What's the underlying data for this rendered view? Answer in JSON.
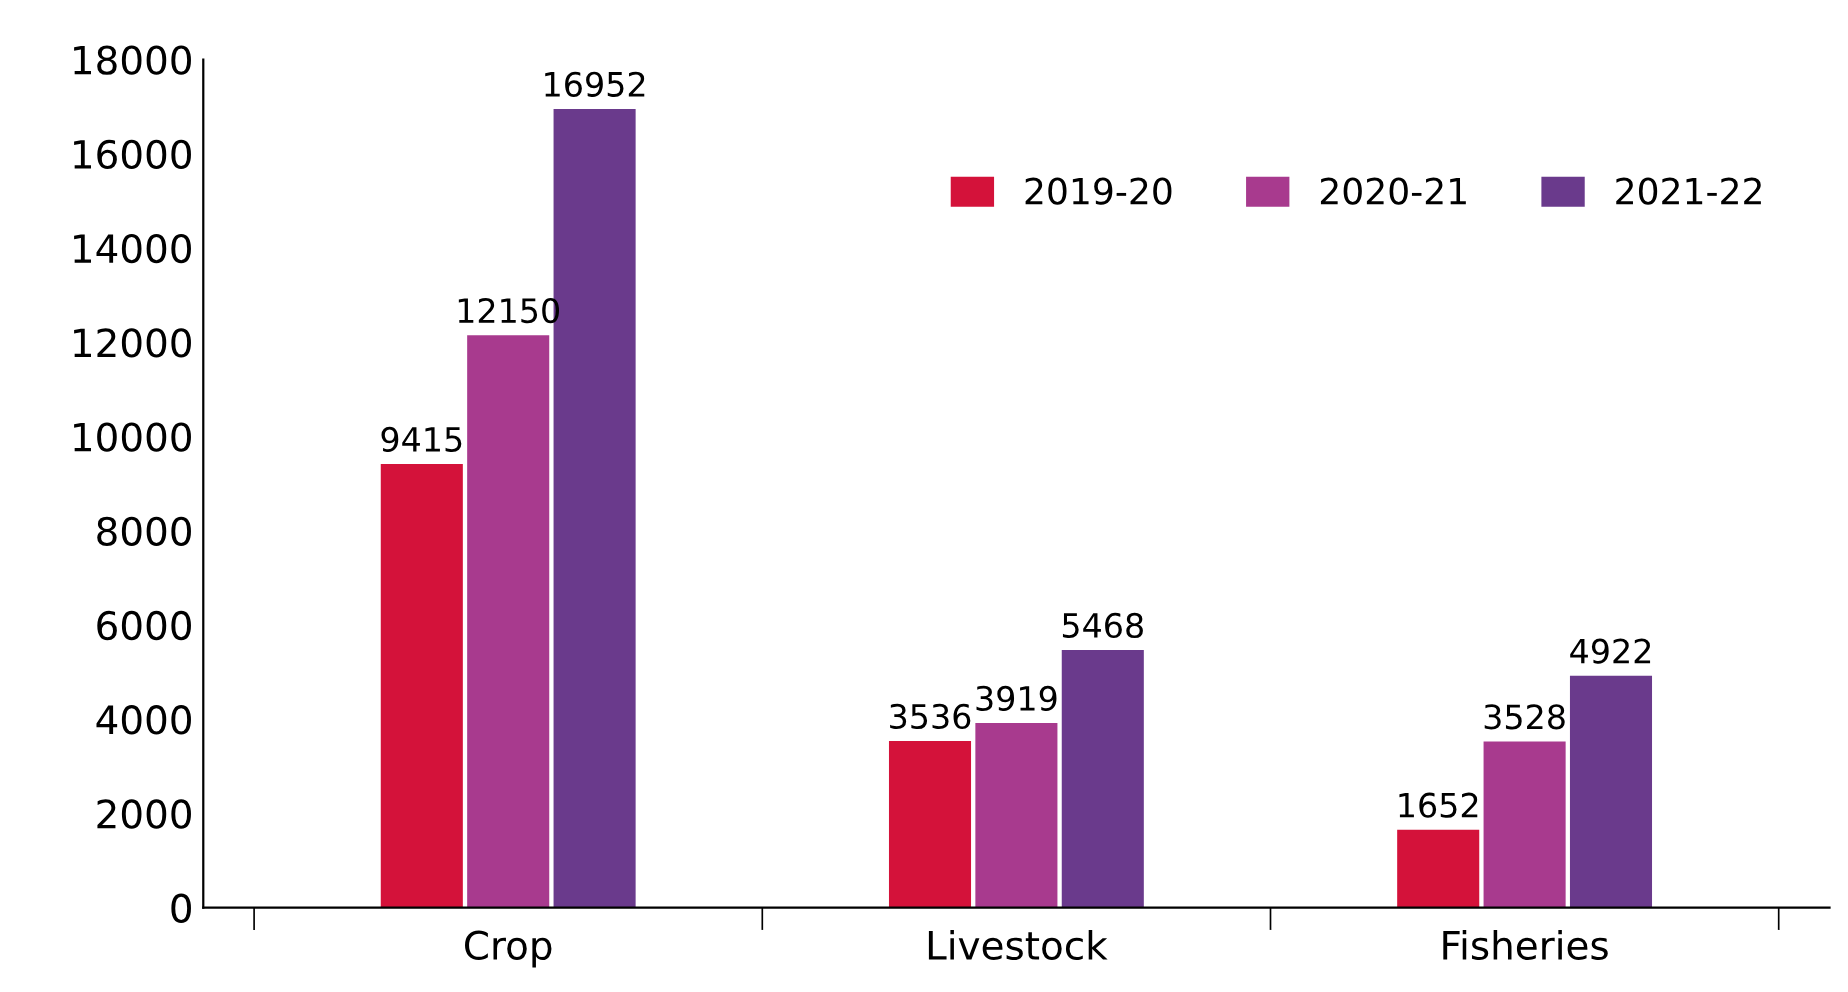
{
  "chart_data": {
    "type": "bar",
    "categories": [
      "Crop",
      "Livestock",
      "Fisheries"
    ],
    "series": [
      {
        "name": "2019-20",
        "color": "#d4123a",
        "values": [
          9415,
          3536,
          1652
        ]
      },
      {
        "name": "2020-21",
        "color": "#a83a8e",
        "values": [
          12150,
          3919,
          3528
        ]
      },
      {
        "name": "2021-22",
        "color": "#6a3a8c",
        "values": [
          16952,
          5468,
          4922
        ]
      }
    ],
    "ylim": [
      0,
      18000
    ],
    "yticks": [
      0,
      2000,
      4000,
      6000,
      8000,
      10000,
      12000,
      14000,
      16000,
      18000
    ],
    "data_labels": true,
    "grid": false,
    "legend": "top right"
  }
}
